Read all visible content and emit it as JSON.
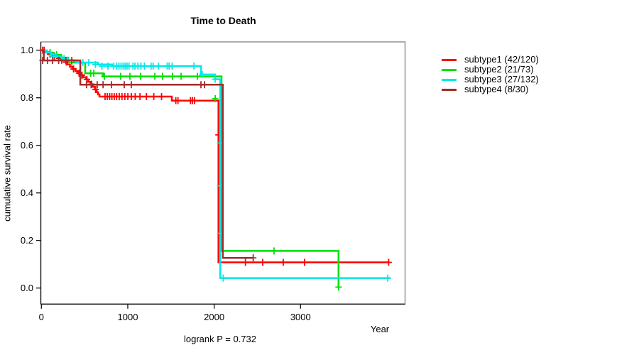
{
  "title": "Time to Death",
  "footer": "logrank P = 0.732",
  "axes": {
    "x_label": "Year",
    "y_label": "cumulative survival rate",
    "x_ticks": [
      [
        0,
        "0"
      ],
      [
        1000,
        "1000"
      ],
      [
        2000,
        "2000"
      ],
      [
        3000,
        "3000"
      ]
    ],
    "y_ticks": [
      [
        0.0,
        "0.0"
      ],
      [
        0.2,
        "0.2"
      ],
      [
        0.4,
        "0.4"
      ],
      [
        0.6,
        "0.6"
      ],
      [
        0.8,
        "0.8"
      ],
      [
        1.0,
        "1.0"
      ]
    ]
  },
  "chart_data": {
    "type": "line",
    "subtype": "kaplan-meier-step-curves",
    "title": "Time to Death",
    "xlabel": "Year",
    "ylabel": "cumulative survival rate",
    "annotation": "logrank P = 0.732",
    "xlim": [
      0,
      4200
    ],
    "ylim": [
      0,
      1.04
    ],
    "grid": false,
    "legend_position": "right-outside",
    "series": [
      {
        "name": "subtype1",
        "legend_label": "subtype1 (42/120)",
        "color": "#ff0000",
        "end": 4030,
        "steps": [
          [
            0,
            1.0
          ],
          [
            45,
            0.992
          ],
          [
            90,
            0.983
          ],
          [
            135,
            0.975
          ],
          [
            180,
            0.967
          ],
          [
            220,
            0.958
          ],
          [
            260,
            0.95
          ],
          [
            300,
            0.94
          ],
          [
            330,
            0.93
          ],
          [
            360,
            0.921
          ],
          [
            395,
            0.912
          ],
          [
            425,
            0.903
          ],
          [
            455,
            0.895
          ],
          [
            485,
            0.886
          ],
          [
            515,
            0.877
          ],
          [
            545,
            0.867
          ],
          [
            570,
            0.857
          ],
          [
            595,
            0.846
          ],
          [
            620,
            0.835
          ],
          [
            640,
            0.824
          ],
          [
            656,
            0.814
          ],
          [
            672,
            0.805
          ],
          [
            1510,
            0.788
          ],
          [
            2050,
            0.108
          ]
        ],
        "censors": [
          [
            15,
            1.0
          ],
          [
            32,
            1.0
          ],
          [
            100,
            0.983
          ],
          [
            152,
            0.975
          ],
          [
            235,
            0.958
          ],
          [
            288,
            0.95
          ],
          [
            372,
            0.921
          ],
          [
            436,
            0.903
          ],
          [
            470,
            0.895
          ],
          [
            527,
            0.877
          ],
          [
            582,
            0.857
          ],
          [
            627,
            0.835
          ],
          [
            737,
            0.805
          ],
          [
            763,
            0.805
          ],
          [
            790,
            0.805
          ],
          [
            816,
            0.805
          ],
          [
            843,
            0.805
          ],
          [
            871,
            0.805
          ],
          [
            901,
            0.805
          ],
          [
            933,
            0.805
          ],
          [
            966,
            0.805
          ],
          [
            1001,
            0.805
          ],
          [
            1041,
            0.805
          ],
          [
            1086,
            0.805
          ],
          [
            1141,
            0.805
          ],
          [
            1216,
            0.805
          ],
          [
            1301,
            0.805
          ],
          [
            1391,
            0.805
          ],
          [
            1556,
            0.788
          ],
          [
            1581,
            0.788
          ],
          [
            1726,
            0.788
          ],
          [
            1749,
            0.788
          ],
          [
            1773,
            0.788
          ],
          [
            2050,
            0.644
          ],
          [
            2362,
            0.108
          ],
          [
            2562,
            0.108
          ],
          [
            2800,
            0.108
          ],
          [
            3047,
            0.108
          ],
          [
            4020,
            0.108
          ]
        ]
      },
      {
        "name": "subtype2",
        "legend_label": "subtype2 (21/73)",
        "color": "#00e000",
        "end": 3440,
        "steps": [
          [
            0,
            1.0
          ],
          [
            60,
            0.99
          ],
          [
            140,
            0.981
          ],
          [
            230,
            0.969
          ],
          [
            310,
            0.958
          ],
          [
            380,
            0.948
          ],
          [
            507,
            0.903
          ],
          [
            713,
            0.89
          ],
          [
            2085,
            0.156
          ],
          [
            3440,
            0.0
          ]
        ],
        "censors": [
          [
            100,
            0.99
          ],
          [
            176,
            0.981
          ],
          [
            352,
            0.948
          ],
          [
            570,
            0.903
          ],
          [
            606,
            0.903
          ],
          [
            729,
            0.89
          ],
          [
            918,
            0.89
          ],
          [
            1025,
            0.89
          ],
          [
            1148,
            0.89
          ],
          [
            1313,
            0.89
          ],
          [
            1403,
            0.89
          ],
          [
            1518,
            0.89
          ],
          [
            1617,
            0.89
          ],
          [
            1806,
            0.89
          ],
          [
            2012,
            0.796
          ],
          [
            2693,
            0.156
          ],
          [
            3440,
            0.004
          ]
        ]
      },
      {
        "name": "subtype3",
        "legend_label": "subtype3 (27/132)",
        "color": "#00e8e8",
        "end": 4040,
        "steps": [
          [
            0,
            1.0
          ],
          [
            55,
            0.991
          ],
          [
            110,
            0.982
          ],
          [
            170,
            0.973
          ],
          [
            235,
            0.965
          ],
          [
            305,
            0.957
          ],
          [
            410,
            0.948
          ],
          [
            655,
            0.94
          ],
          [
            818,
            0.933
          ],
          [
            1848,
            0.898
          ],
          [
            2011,
            0.878
          ],
          [
            2070,
            0.042
          ]
        ],
        "censors": [
          [
            140,
            0.973
          ],
          [
            262,
            0.965
          ],
          [
            480,
            0.948
          ],
          [
            546,
            0.948
          ],
          [
            626,
            0.94
          ],
          [
            700,
            0.933
          ],
          [
            770,
            0.933
          ],
          [
            838,
            0.933
          ],
          [
            872,
            0.933
          ],
          [
            898,
            0.933
          ],
          [
            922,
            0.933
          ],
          [
            946,
            0.933
          ],
          [
            969,
            0.933
          ],
          [
            991,
            0.933
          ],
          [
            1014,
            0.933
          ],
          [
            1060,
            0.933
          ],
          [
            1083,
            0.933
          ],
          [
            1118,
            0.933
          ],
          [
            1152,
            0.933
          ],
          [
            1193,
            0.933
          ],
          [
            1270,
            0.933
          ],
          [
            1293,
            0.933
          ],
          [
            1356,
            0.933
          ],
          [
            1456,
            0.933
          ],
          [
            1479,
            0.933
          ],
          [
            1513,
            0.933
          ],
          [
            1766,
            0.933
          ],
          [
            1862,
            0.898
          ],
          [
            2011,
            0.878
          ],
          [
            2070,
            0.61
          ],
          [
            2070,
            0.43
          ],
          [
            2070,
            0.23
          ],
          [
            2105,
            0.042
          ],
          [
            4010,
            0.042
          ]
        ]
      },
      {
        "name": "subtype4",
        "legend_label": "subtype4 (8/30)",
        "color": "#a52a2a",
        "end": 2452,
        "steps": [
          [
            0,
            1.0
          ],
          [
            28,
            0.957
          ],
          [
            450,
            0.855
          ],
          [
            2100,
            0.127
          ]
        ],
        "censors": [
          [
            14,
            0.957
          ],
          [
            70,
            0.957
          ],
          [
            130,
            0.957
          ],
          [
            200,
            0.957
          ],
          [
            282,
            0.957
          ],
          [
            352,
            0.957
          ],
          [
            522,
            0.855
          ],
          [
            576,
            0.855
          ],
          [
            646,
            0.855
          ],
          [
            714,
            0.855
          ],
          [
            811,
            0.855
          ],
          [
            959,
            0.855
          ],
          [
            1041,
            0.855
          ],
          [
            1847,
            0.855
          ],
          [
            1888,
            0.855
          ],
          [
            2452,
            0.127
          ]
        ]
      }
    ]
  },
  "style": {
    "box_color": "#808080",
    "axis_color": "#111111",
    "background": "#ffffff"
  }
}
